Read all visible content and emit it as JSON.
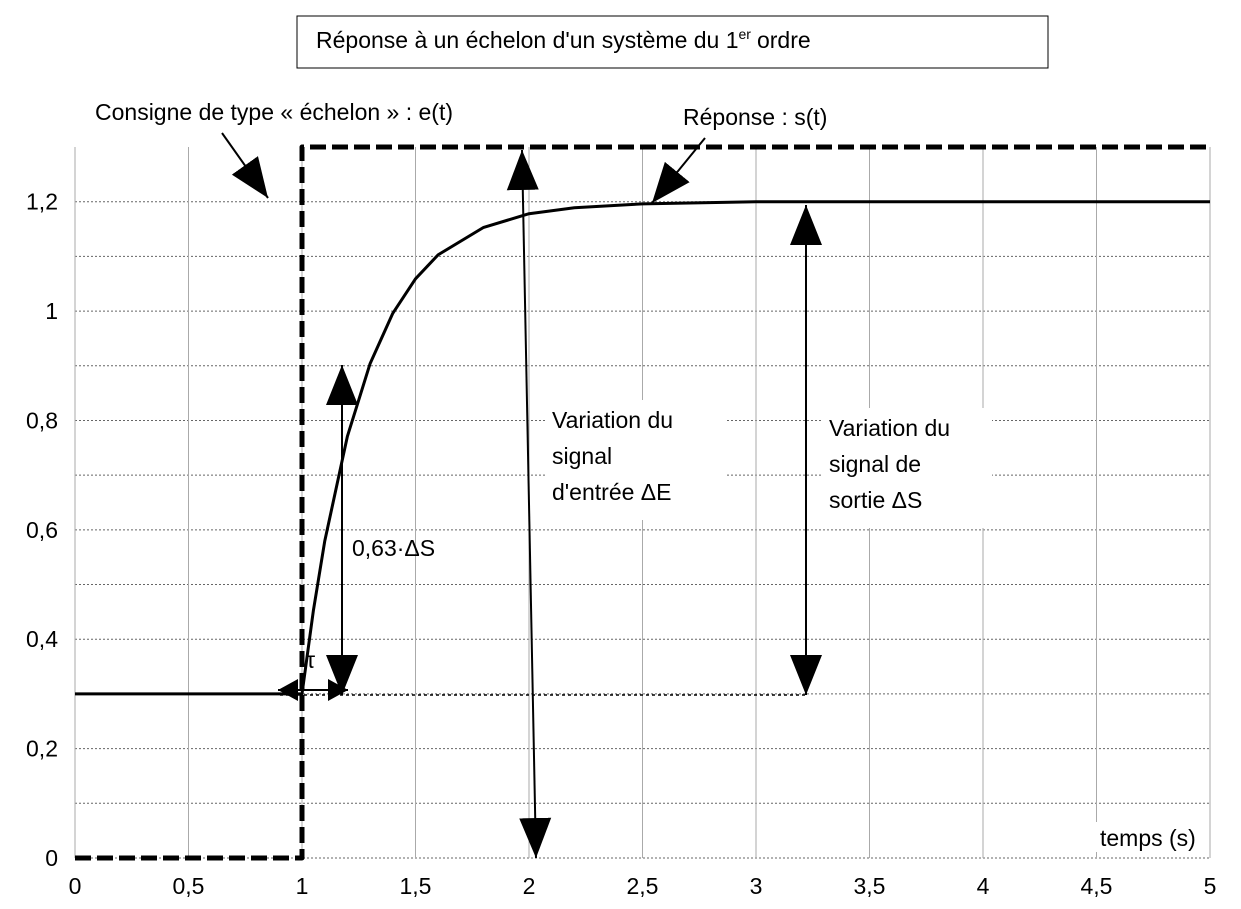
{
  "chart_data": {
    "type": "line",
    "title": "Réponse à un échelon d'un système du 1",
    "title_sup": "er",
    "title_end": "ordre",
    "x_label": "temps (s)",
    "xlim": [
      0,
      5
    ],
    "ylim": [
      0,
      1.3
    ],
    "xticks": [
      0,
      {
        "value": 0.5,
        "label": "0,5"
      },
      1,
      {
        "value": 1.5,
        "label": "1,5"
      },
      2,
      {
        "value": 2.5,
        "label": "2,5"
      },
      3,
      {
        "value": 3.5,
        "label": "3,5"
      },
      4,
      {
        "value": 4.5,
        "label": "4,5"
      },
      5
    ],
    "yticks": [
      0,
      {
        "value": 0.2,
        "label": "0,2"
      },
      {
        "value": 0.4,
        "label": "0,4"
      },
      {
        "value": 0.6,
        "label": "0,6"
      },
      {
        "value": 0.8,
        "label": "0,8"
      },
      1,
      {
        "value": 1.2,
        "label": "1,2"
      }
    ],
    "grid": true,
    "series": [
      {
        "name": "Consigne de type « échelon » : e(t)",
        "color": "#000000",
        "style": "dashed",
        "x": [
          0,
          1,
          1,
          5
        ],
        "values": [
          0,
          0,
          1.3,
          1.3
        ]
      },
      {
        "name": "Réponse : s(t)",
        "color": "#000000",
        "style": "solid",
        "x": [
          0,
          1,
          1.05,
          1.1,
          1.2,
          1.3,
          1.4,
          1.5,
          1.6,
          1.8,
          2,
          2.2,
          2.5,
          3,
          5
        ],
        "values": [
          0.3,
          0.3,
          0.452,
          0.579,
          0.771,
          0.904,
          0.996,
          1.059,
          1.103,
          1.153,
          1.178,
          1.189,
          1.196,
          1.2,
          1.2
        ]
      }
    ],
    "annotations": {
      "delta_e": [
        "Variation du",
        "signal",
        "d'entrée ΔE"
      ],
      "delta_s": [
        "Variation du",
        "signal de",
        "sortie ΔS"
      ],
      "ratio": "0,63·ΔS",
      "tau": "τ"
    }
  }
}
